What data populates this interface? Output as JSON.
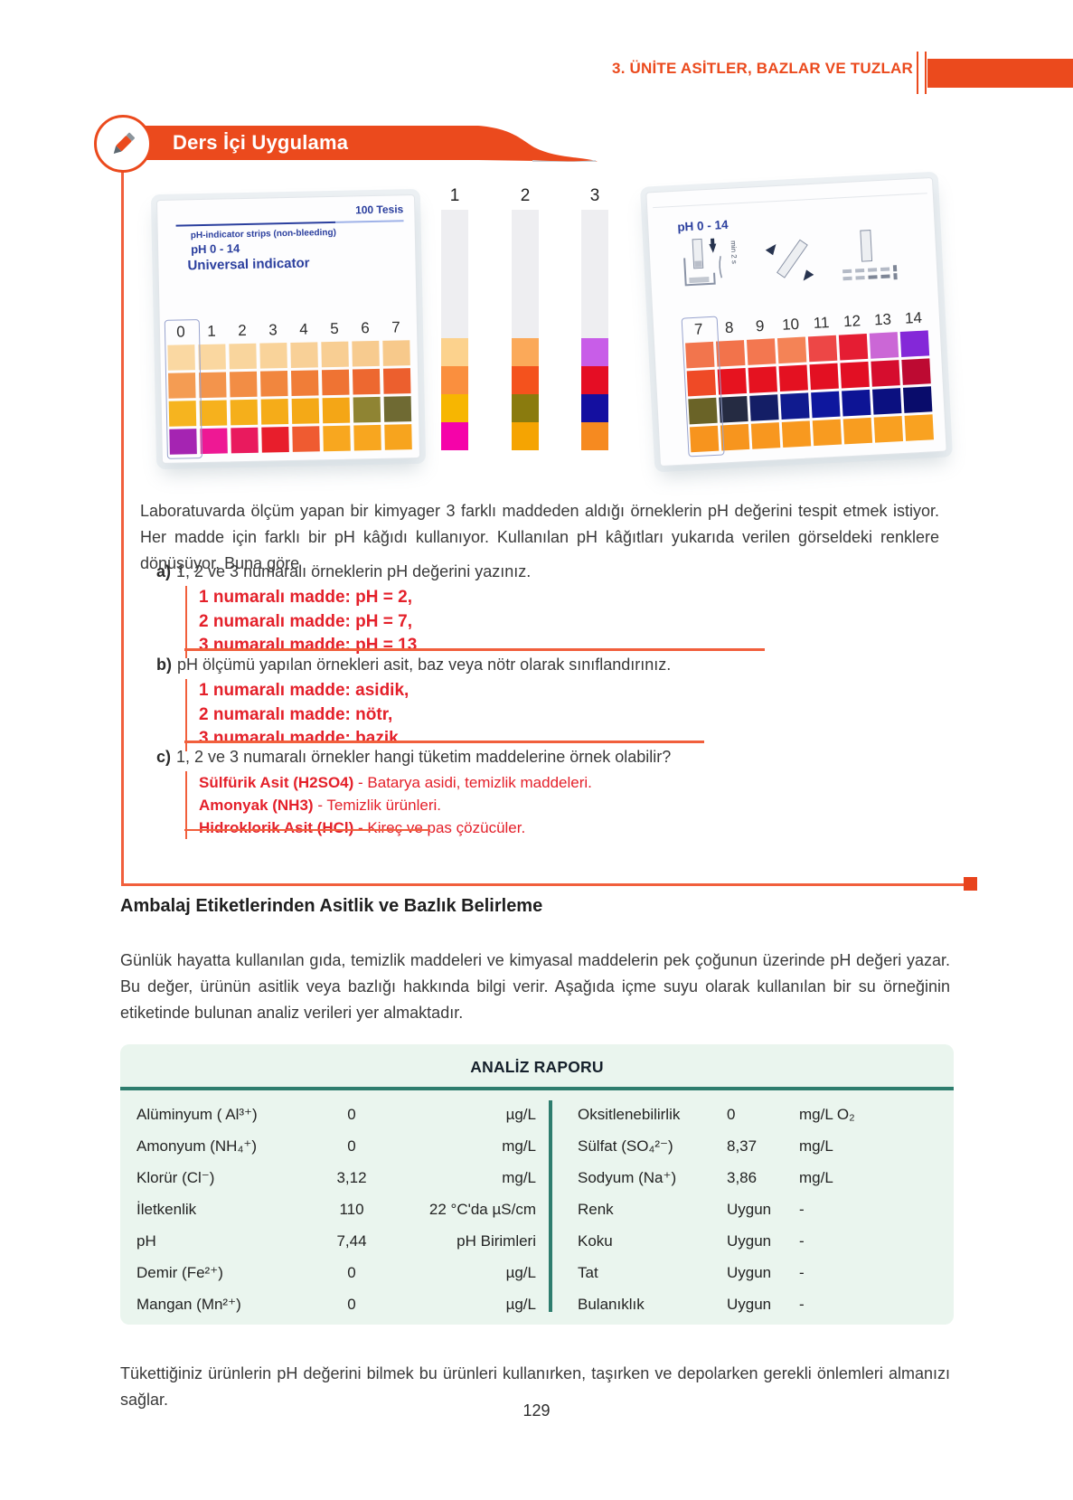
{
  "header": {
    "unit_title": "3. ÜNİTE ASİTLER, BAZLAR VE TUZLAR"
  },
  "activity": {
    "banner_title": "Ders İçi Uygulama",
    "intro": "Laboratuvarda ölçüm yapan bir kimyager 3 farklı maddeden aldığı örneklerin pH değerini tespit etmek istiyor. Her madde için farklı bir pH kâğıdı kullanıyor. Kullanılan pH kâğıtları yukarıda verilen görseldeki renklere dönüşüyor. Buna göre",
    "questions": [
      {
        "label": "a)",
        "text": "1, 2 ve 3 numaralı örneklerin pH değerini yazınız.",
        "answers": [
          "1 numaralı madde: pH = 2,",
          "2 numaralı madde: pH = 7,",
          "3 numaralı madde: pH = 13"
        ]
      },
      {
        "label": "b)",
        "text": "pH ölçümü yapılan örnekleri asit, baz veya nötr olarak sınıflandırınız.",
        "answers": [
          "1 numaralı madde: asidik,",
          "2 numaralı madde: nötr,",
          "3 numaralı madde: bazik"
        ]
      },
      {
        "label": "c)",
        "text": "1, 2 ve 3 numaralı örnekler hangi tüketim maddelerine örnek olabilir?",
        "answers": [
          {
            "bold": "Sülfürik Asit (H2SO4)",
            "rest": " - Batarya asidi, temizlik maddeleri."
          },
          {
            "bold": "Amonyak (NH3)",
            "rest": " - Temizlik ürünleri."
          },
          {
            "bold": "Hidroklorik Asit (HCl)",
            "rest": " - Kireç ve pas çözücüler."
          }
        ]
      }
    ]
  },
  "figures": {
    "left_box": {
      "tests_label": "100 Tesis",
      "line1": "pH-indicator strips (non-bleeding)",
      "line2": "pH 0 - 14",
      "line3": "Universal indicator",
      "scale_numbers": [
        "0",
        "1",
        "2",
        "3",
        "4",
        "5",
        "6",
        "7"
      ],
      "grid_rows": [
        [
          "#FAD8A2",
          "#FAD7A0",
          "#F9D59D",
          "#F9D39A",
          "#F8D097",
          "#F8CE93",
          "#F7CB8F",
          "#F7C98B"
        ],
        [
          "#F49C53",
          "#F3944C",
          "#F28D45",
          "#F1863E",
          "#F07D38",
          "#EF7333",
          "#ED6830",
          "#EC5F2E"
        ],
        [
          "#F6B41F",
          "#F6B11D",
          "#F5AF1B",
          "#F5AC19",
          "#F4A917",
          "#F4A616",
          "#8F8433",
          "#6F6A33"
        ],
        [
          "#A524B2",
          "#EE1894",
          "#E91A5E",
          "#E81E2C",
          "#EF5B31",
          "#F8A71F",
          "#F8A61F",
          "#F7A41E"
        ]
      ]
    },
    "strips": [
      {
        "label": "1",
        "bands": [
          "#FCD28D",
          "#FA8F3E",
          "#F7B601",
          "#F503A9"
        ]
      },
      {
        "label": "2",
        "bands": [
          "#FBA959",
          "#F4521D",
          "#8A7B0E",
          "#F5A402"
        ]
      },
      {
        "label": "3",
        "bands": [
          "#C85DE8",
          "#E50D24",
          "#140FA0",
          "#F68A20"
        ]
      }
    ],
    "right_box": {
      "title": "pH 0 - 14",
      "min_label": "min 2 s",
      "scale_numbers": [
        "7",
        "8",
        "9",
        "10",
        "11",
        "12",
        "13",
        "14"
      ],
      "grid_rows": [
        [
          "#F2754D",
          "#F2734B",
          "#F37750",
          "#F48356",
          "#ED4746",
          "#E51D33",
          "#CB67D6",
          "#8428D8"
        ],
        [
          "#EF4A26",
          "#E6131F",
          "#E51220",
          "#E41121",
          "#E31022",
          "#E20F23",
          "#D60D2E",
          "#BD0A32"
        ],
        [
          "#6A6327",
          "#252B42",
          "#141E66",
          "#101B8F",
          "#0E179E",
          "#0D1495",
          "#0B1080",
          "#090C6B"
        ],
        [
          "#F7941E",
          "#F7951E",
          "#F8971F",
          "#F8991F",
          "#F89B20",
          "#F89D20",
          "#F9A021",
          "#F9A221"
        ]
      ]
    }
  },
  "section": {
    "heading": "Ambalaj Etiketlerinden Asitlik ve Bazlık Belirleme",
    "paragraph": "Günlük hayatta kullanılan gıda, temizlik maddeleri ve kimyasal maddelerin pek çoğunun üzerinde pH değeri yazar. Bu değer, ürünün asitlik veya bazlığı hakkında bilgi verir. Aşağıda içme suyu olarak kullanılan bir su örneğinin etiketinde bulunan analiz verileri yer almaktadır."
  },
  "report": {
    "title": "ANALİZ RAPORU",
    "left_rows": [
      {
        "label": "Alüminyum ( Al³⁺)",
        "value": "0",
        "unit": "µg/L"
      },
      {
        "label": "Amonyum (NH₄⁺)",
        "value": "0",
        "unit": "mg/L"
      },
      {
        "label": "Klorür (Cl⁻)",
        "value": "3,12",
        "unit": "mg/L"
      },
      {
        "label": "İletkenlik",
        "value": "110",
        "unit": "22 °C'da µS/cm"
      },
      {
        "label": "pH",
        "value": "7,44",
        "unit": "pH Birimleri"
      },
      {
        "label": "Demir (Fe²⁺)",
        "value": "0",
        "unit": "µg/L"
      },
      {
        "label": "Mangan (Mn²⁺)",
        "value": "0",
        "unit": "µg/L"
      }
    ],
    "right_rows": [
      {
        "label": "Oksitlenebilirlik",
        "value": "0",
        "unit": "mg/L O₂"
      },
      {
        "label": "Sülfat (SO₄²⁻)",
        "value": "8,37",
        "unit": "mg/L"
      },
      {
        "label": "Sodyum (Na⁺)",
        "value": "3,86",
        "unit": "mg/L"
      },
      {
        "label": "Renk",
        "value": "Uygun",
        "unit": "-"
      },
      {
        "label": "Koku",
        "value": "Uygun",
        "unit": "-"
      },
      {
        "label": "Tat",
        "value": "Uygun",
        "unit": "-"
      },
      {
        "label": "Bulanıklık",
        "value": "Uygun",
        "unit": "-"
      }
    ]
  },
  "footer": {
    "paragraph": "Tükettiğiniz ürünlerin pH değerini bilmek bu ürünleri kullanırken, taşırken ve depolarken gerekli önlemleri almanızı sağlar.",
    "page_number": "129"
  }
}
